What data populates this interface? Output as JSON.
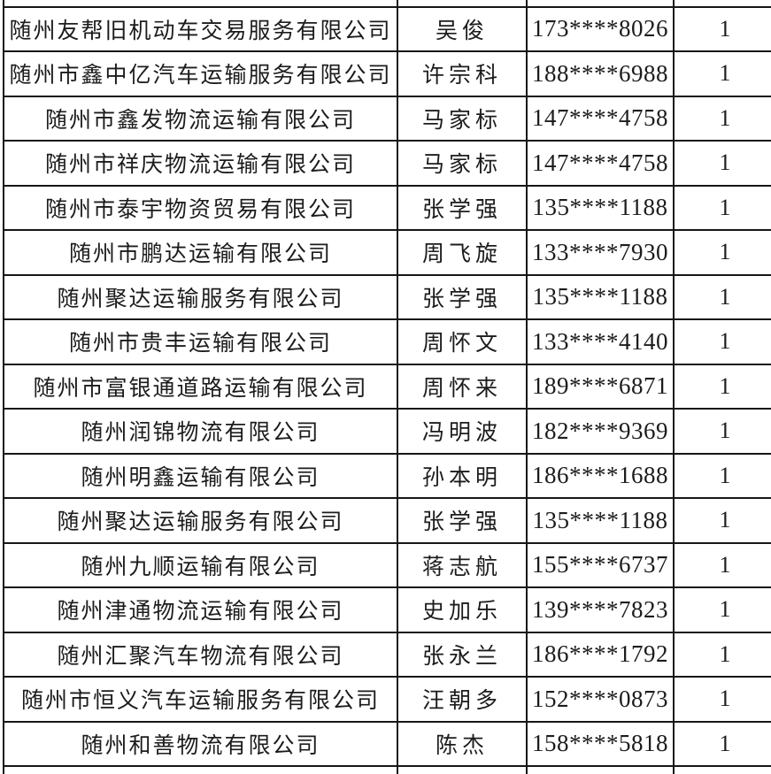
{
  "colors": {
    "background": "#ffffff",
    "border": "#161616",
    "text": "#1c1c1c"
  },
  "table": {
    "rows": [
      {
        "company": "随州友帮旧机动车交易服务有限公司",
        "contact": "吴俊",
        "phone": "173****8026",
        "count": "1"
      },
      {
        "company": "随州市鑫中亿汽车运输服务有限公司",
        "contact": "许宗科",
        "phone": "188****6988",
        "count": "1"
      },
      {
        "company": "随州市鑫发物流运输有限公司",
        "contact": "马家标",
        "phone": "147****4758",
        "count": "1"
      },
      {
        "company": "随州市祥庆物流运输有限公司",
        "contact": "马家标",
        "phone": "147****4758",
        "count": "1"
      },
      {
        "company": "随州市泰宇物资贸易有限公司",
        "contact": "张学强",
        "phone": "135****1188",
        "count": "1"
      },
      {
        "company": "随州市鹏达运输有限公司",
        "contact": "周飞旋",
        "phone": "133****7930",
        "count": "1"
      },
      {
        "company": "随州聚达运输服务有限公司",
        "contact": "张学强",
        "phone": "135****1188",
        "count": "1"
      },
      {
        "company": "随州市贵丰运输有限公司",
        "contact": "周怀文",
        "phone": "133****4140",
        "count": "1"
      },
      {
        "company": "随州市富银通道路运输有限公司",
        "contact": "周怀来",
        "phone": "189****6871",
        "count": "1"
      },
      {
        "company": "随州润锦物流有限公司",
        "contact": "冯明波",
        "phone": "182****9369",
        "count": "1"
      },
      {
        "company": "随州明鑫运输有限公司",
        "contact": "孙本明",
        "phone": "186****1688",
        "count": "1"
      },
      {
        "company": "随州聚达运输服务有限公司",
        "contact": "张学强",
        "phone": "135****1188",
        "count": "1"
      },
      {
        "company": "随州九顺运输有限公司",
        "contact": "蒋志航",
        "phone": "155****6737",
        "count": "1"
      },
      {
        "company": "随州津通物流运输有限公司",
        "contact": "史加乐",
        "phone": "139****7823",
        "count": "1"
      },
      {
        "company": "随州汇聚汽车物流有限公司",
        "contact": "张永兰",
        "phone": "186****1792",
        "count": "1"
      },
      {
        "company": "随州市恒义汽车运输服务有限公司",
        "contact": "汪朝多",
        "phone": "152****0873",
        "count": "1"
      },
      {
        "company": "随州和善物流有限公司",
        "contact": "陈杰",
        "phone": "158****5818",
        "count": "1"
      }
    ]
  }
}
